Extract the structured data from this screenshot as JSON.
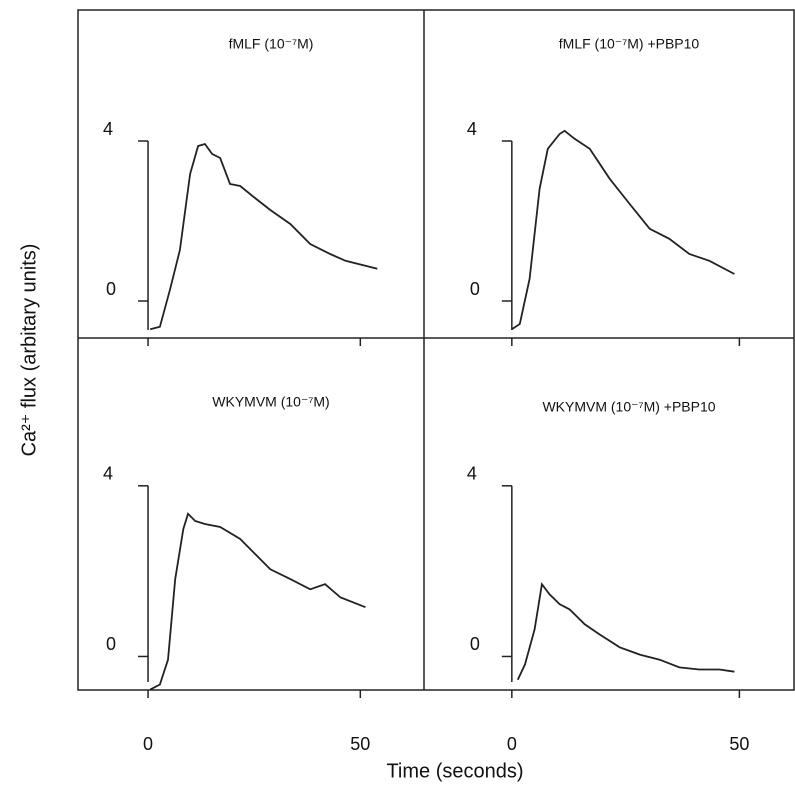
{
  "xlabel": "Time (seconds)",
  "ylabel": "Ca²⁺ flux (arbitary units)",
  "chart_data": [
    {
      "type": "line",
      "title": "fMLF (10⁻⁷M)",
      "color": "#222",
      "x": [
        0.5,
        2.8,
        5.2,
        7.5,
        9.9,
        11.8,
        13.4,
        15.1,
        17,
        19.3,
        21.7,
        25.2,
        28.8,
        33.5,
        38.2,
        42.9,
        46.5,
        54
      ],
      "values": [
        -0.88,
        -0.82,
        0.12,
        1.1,
        3.0,
        3.7,
        3.75,
        3.5,
        3.4,
        2.75,
        2.7,
        2.4,
        2.1,
        1.75,
        1.25,
        1.0,
        0.83,
        0.63
      ],
      "xlim": [
        -16.5,
        65
      ],
      "ylim": [
        -1.1,
        7.1
      ],
      "xticks": [
        0,
        50
      ],
      "yticks": [
        0,
        4
      ]
    },
    {
      "type": "line",
      "title": "fMLF (10⁻⁷M) +PBP10",
      "color": "#222",
      "x": [
        0,
        1.75,
        3.9,
        6.1,
        7.9,
        10.5,
        11.6,
        13.8,
        17.1,
        21.5,
        25.9,
        30.3,
        34.6,
        39,
        43.4,
        48.9
      ],
      "values": [
        -0.88,
        -0.75,
        0.38,
        2.63,
        3.63,
        4.0,
        4.08,
        3.88,
        3.63,
        2.88,
        2.25,
        1.63,
        1.38,
        1.0,
        0.83,
        0.5
      ],
      "xlim": [
        -19.3,
        62
      ],
      "ylim": [
        -1.1,
        7.1
      ],
      "xticks": [
        0,
        50
      ],
      "yticks": [
        0,
        4
      ]
    },
    {
      "type": "line",
      "title": "WKYMVM (10⁻⁷M)",
      "color": "#222",
      "x": [
        0.5,
        2.8,
        4.7,
        6.4,
        8.3,
        9.4,
        11.1,
        13.4,
        17,
        21.7,
        25.2,
        28.8,
        33.5,
        38.2,
        41.7,
        45.3,
        51.2
      ],
      "values": [
        -0.94,
        -0.82,
        -0.24,
        1.65,
        2.82,
        3.18,
        3.01,
        2.94,
        2.87,
        2.59,
        2.24,
        1.88,
        1.65,
        1.41,
        1.53,
        1.22,
        0.99
      ],
      "xlim": [
        -16.5,
        65
      ],
      "ylim": [
        -0.95,
        7.3
      ],
      "xticks": [
        0,
        50
      ],
      "yticks": [
        0,
        4
      ]
    },
    {
      "type": "line",
      "title": "WKYMVM (10⁻⁷M) +PBP10",
      "color": "#222",
      "x": [
        1.3,
        2.9,
        5.0,
        6.6,
        8.3,
        10.5,
        12.7,
        16,
        19.3,
        23.7,
        28.1,
        32.5,
        36.8,
        41.2,
        45.6,
        48.9
      ],
      "values": [
        -0.71,
        -0.35,
        0.47,
        1.53,
        1.29,
        1.06,
        0.94,
        0.59,
        0.35,
        0.05,
        -0.12,
        -0.24,
        -0.42,
        -0.47,
        -0.47,
        -0.52
      ],
      "xlim": [
        -19.3,
        62
      ],
      "ylim": [
        -0.95,
        7.3
      ],
      "xticks": [
        0,
        50
      ],
      "yticks": [
        0,
        4
      ]
    }
  ]
}
